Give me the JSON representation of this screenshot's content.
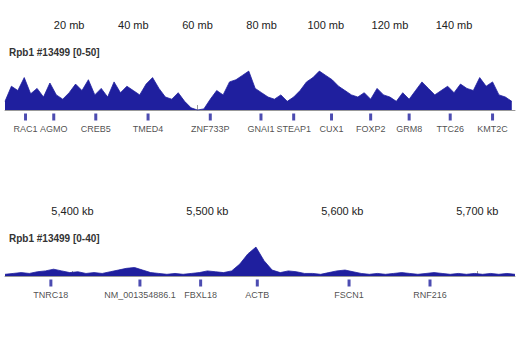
{
  "chart_data": [
    {
      "type": "area",
      "title": "Rpb1 #13499 [0-50]",
      "color": "#1f1f9e",
      "tick_labels": "x",
      "xlim": [
        0,
        159
      ],
      "ylim": [
        0,
        50
      ],
      "xticks": [
        {
          "value": 20,
          "label": "20 mb"
        },
        {
          "value": 40,
          "label": "40 mb"
        },
        {
          "value": 60,
          "label": "60 mb"
        },
        {
          "value": 80,
          "label": "80 mb"
        },
        {
          "value": 100,
          "label": "100 mb"
        },
        {
          "value": 120,
          "label": "120 mb"
        },
        {
          "value": 140,
          "label": "140 mb"
        }
      ],
      "x": [
        0,
        2,
        4,
        6,
        8,
        10,
        12,
        14,
        16,
        18,
        20,
        22,
        24,
        26,
        28,
        30,
        32,
        34,
        36,
        38,
        40,
        42,
        44,
        46,
        48,
        50,
        52,
        54,
        56,
        58,
        60,
        62,
        64,
        66,
        68,
        70,
        72,
        74,
        76,
        78,
        80,
        82,
        84,
        86,
        88,
        90,
        92,
        94,
        96,
        98,
        100,
        102,
        104,
        106,
        108,
        110,
        112,
        114,
        116,
        118,
        120,
        122,
        124,
        126,
        128,
        130,
        132,
        134,
        136,
        138,
        140,
        142,
        144,
        146,
        148,
        150,
        152,
        154,
        156,
        158
      ],
      "values": [
        8,
        22,
        18,
        30,
        15,
        20,
        12,
        25,
        14,
        10,
        16,
        24,
        18,
        28,
        14,
        20,
        12,
        26,
        16,
        22,
        18,
        14,
        24,
        30,
        20,
        12,
        10,
        16,
        8,
        2,
        0,
        1,
        10,
        18,
        14,
        26,
        28,
        32,
        36,
        20,
        16,
        12,
        10,
        14,
        8,
        12,
        18,
        26,
        30,
        36,
        32,
        28,
        22,
        18,
        14,
        12,
        16,
        10,
        20,
        14,
        12,
        8,
        16,
        10,
        18,
        26,
        20,
        14,
        18,
        22,
        16,
        24,
        20,
        18,
        30,
        22,
        26,
        14,
        12,
        8
      ],
      "annotations": [
        {
          "text": "RAC1",
          "x": 6.4
        },
        {
          "text": "AGMO",
          "x": 15.2
        },
        {
          "text": "CREB5",
          "x": 28.3
        },
        {
          "text": "TMED4",
          "x": 44.6
        },
        {
          "text": "ZNF733P",
          "x": 64
        },
        {
          "text": "GNAI1",
          "x": 79.8
        },
        {
          "text": "STEAP1",
          "x": 90
        },
        {
          "text": "CUX1",
          "x": 101.8
        },
        {
          "text": "FOXP2",
          "x": 114
        },
        {
          "text": "GRM8",
          "x": 126
        },
        {
          "text": "TTC26",
          "x": 138.8
        },
        {
          "text": "KMT2C",
          "x": 152
        }
      ]
    },
    {
      "type": "area",
      "title": "Rpb1 #13499 [0-40]",
      "color": "#1f1f9e",
      "tick_labels": "x",
      "xlim": [
        5350,
        5728
      ],
      "ylim": [
        0,
        40
      ],
      "xticks": [
        {
          "value": 5400,
          "label": "5,400 kb"
        },
        {
          "value": 5500,
          "label": "5,500 kb"
        },
        {
          "value": 5600,
          "label": "5,600 kb"
        },
        {
          "value": 5700,
          "label": "5,700 kb"
        }
      ],
      "x": [
        5350,
        5356,
        5362,
        5368,
        5374,
        5380,
        5386,
        5392,
        5398,
        5404,
        5410,
        5416,
        5422,
        5428,
        5434,
        5440,
        5446,
        5452,
        5458,
        5464,
        5470,
        5476,
        5482,
        5488,
        5494,
        5500,
        5506,
        5512,
        5518,
        5524,
        5530,
        5536,
        5542,
        5548,
        5554,
        5560,
        5566,
        5572,
        5578,
        5584,
        5590,
        5596,
        5602,
        5608,
        5614,
        5620,
        5626,
        5632,
        5638,
        5644,
        5650,
        5656,
        5662,
        5668,
        5674,
        5680,
        5686,
        5692,
        5698,
        5704,
        5710,
        5716,
        5722,
        5728
      ],
      "values": [
        2,
        3,
        4,
        3,
        5,
        6,
        8,
        6,
        4,
        5,
        3,
        4,
        3,
        5,
        7,
        9,
        10,
        7,
        4,
        3,
        2,
        3,
        2,
        3,
        4,
        6,
        5,
        4,
        6,
        14,
        26,
        34,
        18,
        7,
        4,
        6,
        5,
        3,
        3,
        2,
        4,
        6,
        7,
        5,
        3,
        2,
        3,
        2,
        3,
        4,
        3,
        2,
        3,
        4,
        3,
        2,
        3,
        2,
        3,
        2,
        3,
        2,
        3,
        2
      ],
      "annotations": [
        {
          "text": "TNRC18",
          "x": 5384
        },
        {
          "text": "NM_001354886.1",
          "x": 5450
        },
        {
          "text": "FBXL18",
          "x": 5495
        },
        {
          "text": "ACTB",
          "x": 5537
        },
        {
          "text": "FSCN1",
          "x": 5605
        },
        {
          "text": "RNF216",
          "x": 5665
        }
      ]
    }
  ]
}
